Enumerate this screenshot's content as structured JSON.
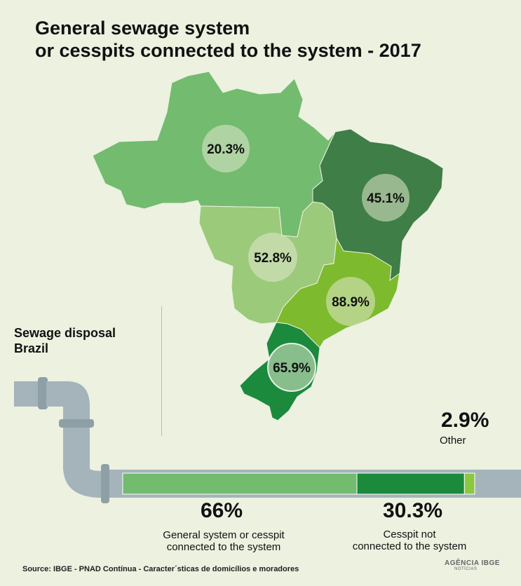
{
  "title_line1": "General sewage system",
  "title_line2": "or cesspits connected to the system - 2017",
  "subtitle_line1": "Sewage disposal",
  "subtitle_line2": "Brazil",
  "source": "Source: IBGE - PNAD Contínua - Caracter´sticas de domicílios e moradores",
  "logo_text": "AGÊNCIA IBGE",
  "logo_sub": "NOTÍCIAS",
  "colors": {
    "north": "#72bb6f",
    "northeast": "#3f7e46",
    "centerwest": "#9cca7b",
    "southeast": "#7dba2d",
    "south": "#1b8a3c",
    "pipe": "#a4b4ba",
    "bar_general": "#72bb6f",
    "bar_cesspit": "#1b8a3c",
    "bar_other": "#8bc840"
  },
  "chart_data": [
    {
      "type": "choropleth",
      "regions": [
        {
          "name": "North",
          "value": 20.3,
          "label": "20.3%"
        },
        {
          "name": "Northeast",
          "value": 45.1,
          "label": "45.1%"
        },
        {
          "name": "Center-West",
          "value": 52.8,
          "label": "52.8%"
        },
        {
          "name": "Southeast",
          "value": 88.9,
          "label": "88.9%"
        },
        {
          "name": "South",
          "value": 65.9,
          "label": "65.9%"
        }
      ]
    },
    {
      "type": "bar",
      "stacked": true,
      "segments": [
        {
          "value": 66,
          "label": "66%",
          "description": "General system or cesspit connected to the system"
        },
        {
          "value": 30.3,
          "label": "30.3%",
          "description": "Cesspit not connected to the system"
        },
        {
          "value": 2.9,
          "label": "2.9%",
          "description": "Other"
        }
      ]
    }
  ],
  "labels": {
    "general_line1": "General system or cesspit",
    "general_line2": "connected to the system",
    "cesspit_line1": "Cesspit not",
    "cesspit_line2": "connected to the system",
    "other": "Other"
  }
}
